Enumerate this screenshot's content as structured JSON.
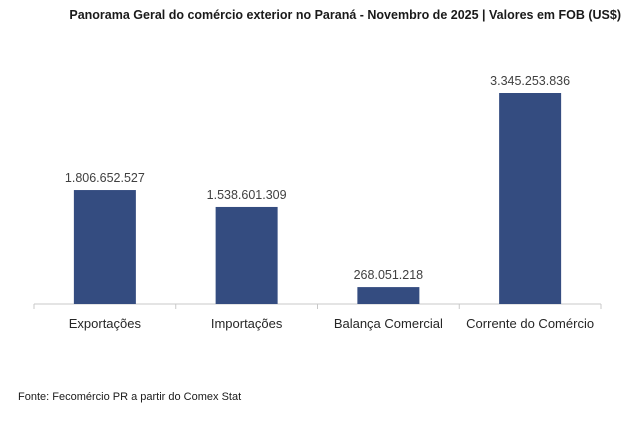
{
  "chart_data": {
    "type": "bar",
    "title": "Panorama Geral do comércio exterior no Paraná - Novembro de 2025 | Valores em FOB (US$)",
    "xlabel": "",
    "ylabel": "",
    "categories": [
      "Exportações",
      "Importações",
      "Balança Comercial",
      "Corrente do Comércio"
    ],
    "values": [
      1806652527,
      1538601309,
      268051218,
      3345253836
    ],
    "value_labels": [
      "1.806.652.527",
      "1.538.601.309",
      "268.051.218",
      "3.345.253.836"
    ],
    "ylim": [
      0,
      3345253836
    ],
    "grid": false,
    "legend": "none",
    "bar_color": "#344C80",
    "source": "Fonte: Fecomércio PR a partir do Comex Stat"
  }
}
